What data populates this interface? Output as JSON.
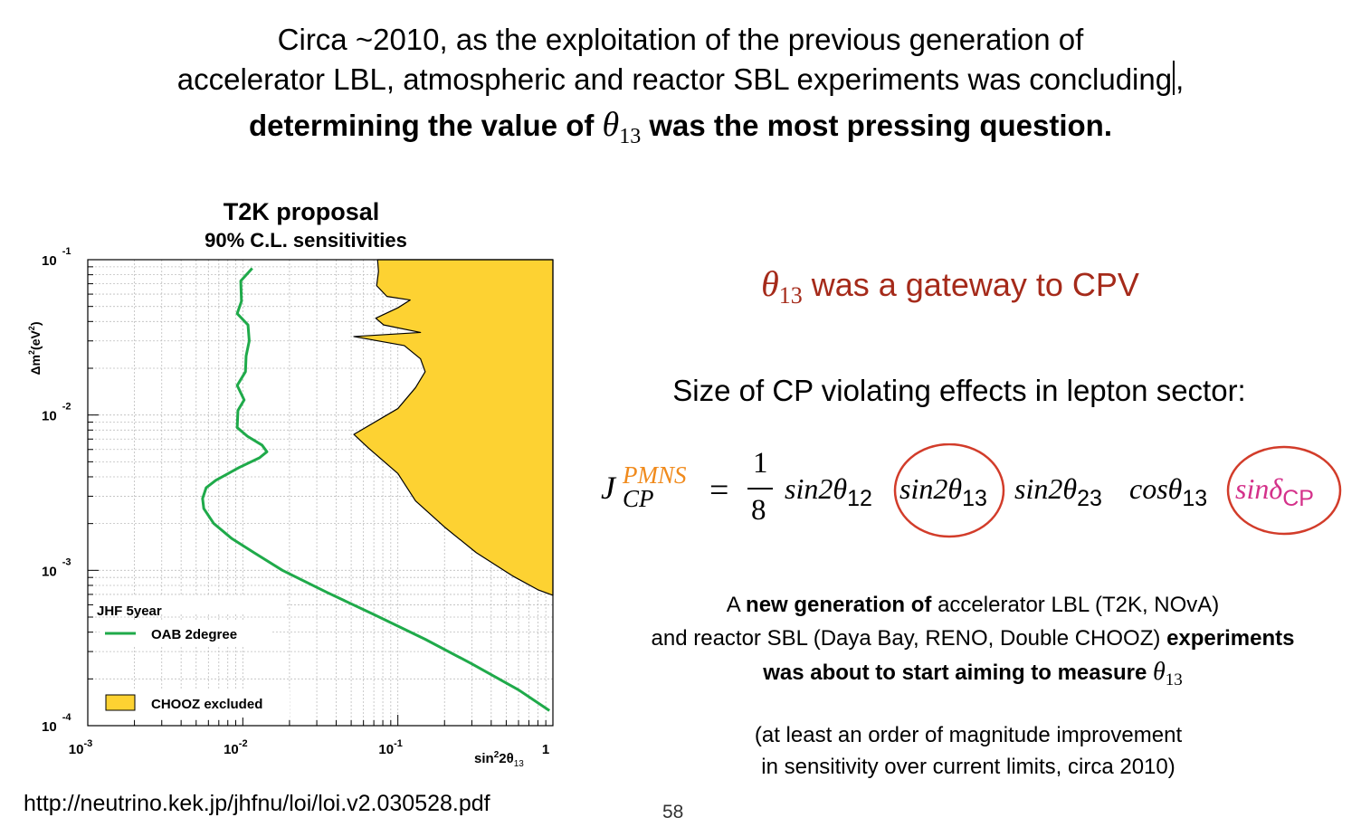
{
  "header": {
    "line1": "Circa ~2010, as the exploitation of the previous generation of",
    "line2": "accelerator LBL, atmospheric and reactor SBL experiments was concluding",
    "line2_comma": ",",
    "line3_pre": "determining the value of",
    "theta": "θ",
    "theta_sub": "13",
    "line3_post": "was the most pressing question."
  },
  "right": {
    "gateway_text": "was a gateway to CPV",
    "cp_size": "Size of CP violating effects in lepton sector:",
    "formula": {
      "J": "J",
      "J_sup": "PMNS",
      "J_sub": "CP",
      "equals": "=",
      "num": "1",
      "den": "8",
      "t1": "sin2θ",
      "t1_sub": "12",
      "t2": "sin2θ",
      "t2_sub": "13",
      "t3": "sin2θ",
      "t3_sub": "23",
      "t4": "cosθ",
      "t4_sub": "13",
      "t5": "sinδ",
      "t5_sub": "CP"
    },
    "newgen": {
      "p1": "A",
      "b1": "new generation of",
      "p2": "accelerator LBL (T2K, NOvA)",
      "p3": "and reactor SBL (Daya Bay, RENO, Double CHOOZ)",
      "b2": "experiments",
      "b3": "was about to start aiming to measure"
    },
    "atleast_1": "(at least an order of magnitude improvement",
    "atleast_2": "in sensitivity over current limits, circa 2010)"
  },
  "url": "http://neutrino.kek.jp/jhfnu/loi/loi.v2.030528.pdf",
  "page_number": "58",
  "colors": {
    "oab_line": "#1faa4a",
    "chooz_fill": "#fdd232",
    "red_text": "#a52a1a",
    "circle": "#d23c2a",
    "magenta": "#d4318a"
  },
  "chart_data": {
    "type": "line",
    "title": "T2K proposal",
    "subtitle": "90% C.L. sensitivities",
    "xlabel_base": "sin",
    "xlabel_sup": "2",
    "xlabel_mid": "2θ",
    "xlabel_sub": "13",
    "ylabel_pre": "Δm",
    "ylabel_sup": "2",
    "ylabel_post": "(eV",
    "ylabel_sup2": "2",
    "ylabel_end": ")",
    "x_scale": "log",
    "y_scale": "log",
    "xlim": [
      0.001,
      1
    ],
    "ylim": [
      0.0001,
      0.1
    ],
    "grid": true,
    "x_ticks": [
      {
        "value": 0.001,
        "base": "10",
        "exp": "-3"
      },
      {
        "value": 0.01,
        "base": "10",
        "exp": "-2"
      },
      {
        "value": 0.1,
        "base": "10",
        "exp": "-1"
      },
      {
        "value": 1,
        "base": "1",
        "exp": ""
      }
    ],
    "y_ticks": [
      {
        "value": 0.1,
        "base": "10",
        "exp": "-1"
      },
      {
        "value": 0.01,
        "base": "10",
        "exp": "-2"
      },
      {
        "value": 0.001,
        "base": "10",
        "exp": "-3"
      },
      {
        "value": 0.0001,
        "base": "10",
        "exp": "-4"
      }
    ],
    "legend_position": "bottom-left",
    "legend_header": "JHF 5year",
    "series": [
      {
        "name": "OAB 2degree",
        "kind": "line",
        "points": [
          [
            0.0115,
            0.088
          ],
          [
            0.0097,
            0.073
          ],
          [
            0.0098,
            0.054
          ],
          [
            0.0092,
            0.045
          ],
          [
            0.0108,
            0.038
          ],
          [
            0.011,
            0.03
          ],
          [
            0.0105,
            0.024
          ],
          [
            0.0104,
            0.019
          ],
          [
            0.0092,
            0.0155
          ],
          [
            0.0102,
            0.0125
          ],
          [
            0.0093,
            0.0107
          ],
          [
            0.0092,
            0.0083
          ],
          [
            0.0107,
            0.0073
          ],
          [
            0.0133,
            0.0064
          ],
          [
            0.0143,
            0.0058
          ],
          [
            0.0128,
            0.0053
          ],
          [
            0.0095,
            0.0046
          ],
          [
            0.0067,
            0.0038
          ],
          [
            0.0058,
            0.0034
          ],
          [
            0.0055,
            0.0029
          ],
          [
            0.0056,
            0.0025
          ],
          [
            0.0065,
            0.002
          ],
          [
            0.0085,
            0.0016
          ],
          [
            0.0118,
            0.0013
          ],
          [
            0.018,
            0.001
          ],
          [
            0.035,
            0.00072
          ],
          [
            0.07,
            0.00052
          ],
          [
            0.15,
            0.00036
          ],
          [
            0.3,
            0.00025
          ],
          [
            0.6,
            0.00017
          ],
          [
            0.95,
            0.000125
          ]
        ]
      },
      {
        "name": "CHOOZ excluded",
        "kind": "area",
        "boundary": [
          [
            0.074,
            0.1
          ],
          [
            0.075,
            0.084
          ],
          [
            0.073,
            0.068
          ],
          [
            0.085,
            0.058
          ],
          [
            0.12,
            0.055
          ],
          [
            0.1,
            0.049
          ],
          [
            0.072,
            0.042
          ],
          [
            0.081,
            0.038
          ],
          [
            0.14,
            0.034
          ],
          [
            0.052,
            0.032
          ],
          [
            0.11,
            0.028
          ],
          [
            0.14,
            0.023
          ],
          [
            0.15,
            0.019
          ],
          [
            0.13,
            0.015
          ],
          [
            0.1,
            0.011
          ],
          [
            0.052,
            0.0075
          ],
          [
            0.065,
            0.0061
          ],
          [
            0.1,
            0.0042
          ],
          [
            0.13,
            0.0028
          ],
          [
            0.2,
            0.0019
          ],
          [
            0.32,
            0.0013
          ],
          [
            0.55,
            0.00092
          ],
          [
            0.8,
            0.00075
          ],
          [
            1.0,
            0.00069
          ]
        ]
      }
    ]
  }
}
